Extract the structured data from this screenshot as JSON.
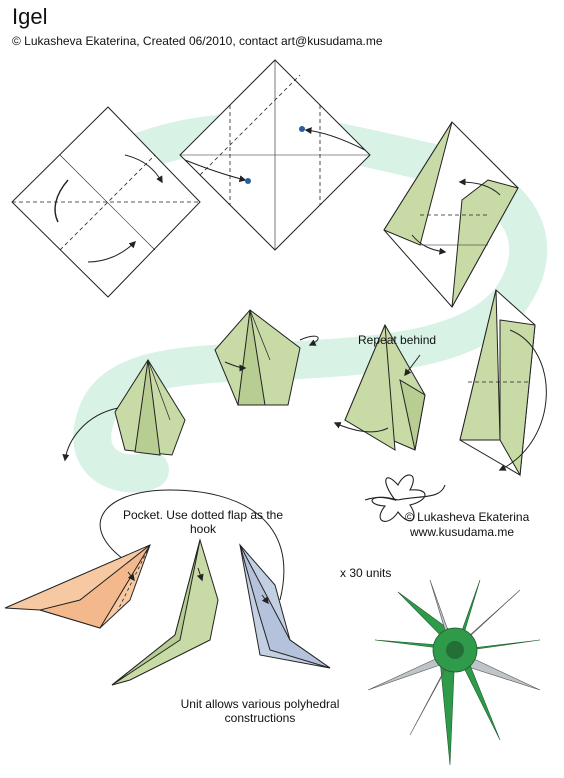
{
  "header": {
    "title": "Igel",
    "subtitle": "© Lukasheva Ekaterina, Created 06/2010, contact art@kusudama.me"
  },
  "annotations": {
    "repeat_behind": "Repeat behind",
    "pocket": "Pocket. Use dotted flap as the hook",
    "credit_name": "© Lukasheva Ekaterina",
    "credit_url": "www.kusudama.me",
    "unit_count": "x 30 units",
    "unit_note": "Unit allows various polyhedral constructions"
  },
  "colors": {
    "flow_band": "#d8f3e6",
    "paper_green": "#c8dba6",
    "paper_orange": "#f7c9a2",
    "paper_blue": "#c3d0e4",
    "model_green": "#2e9a4a",
    "model_grey": "#bfc4c7",
    "line": "#222222",
    "marker": "#2a5f9e"
  },
  "icons": [
    "flower-logo-icon"
  ]
}
